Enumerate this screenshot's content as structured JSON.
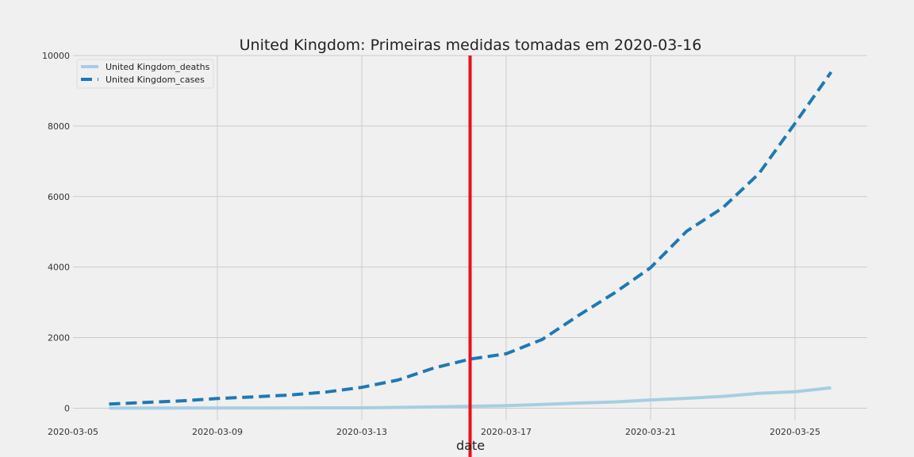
{
  "chart_data": {
    "type": "line",
    "title": "United Kingdom: Primeiras medidas tomadas em 2020-03-16",
    "xlabel": "date",
    "ylabel": "",
    "x_start": "2020-03-05",
    "x_end": "2020-03-27",
    "xticks": [
      "2020-03-05",
      "2020-03-09",
      "2020-03-13",
      "2020-03-17",
      "2020-03-21",
      "2020-03-25"
    ],
    "yticks": [
      0,
      2000,
      4000,
      6000,
      8000,
      10000
    ],
    "ylim": [
      -350,
      10000
    ],
    "grid": true,
    "legend_position": "upper-left",
    "marker_line": {
      "date": "2020-03-16",
      "color": "#e8101a"
    },
    "x": [
      "2020-03-06",
      "2020-03-07",
      "2020-03-08",
      "2020-03-09",
      "2020-03-10",
      "2020-03-11",
      "2020-03-12",
      "2020-03-13",
      "2020-03-14",
      "2020-03-15",
      "2020-03-16",
      "2020-03-17",
      "2020-03-18",
      "2020-03-19",
      "2020-03-20",
      "2020-03-21",
      "2020-03-22",
      "2020-03-23",
      "2020-03-24",
      "2020-03-25",
      "2020-03-26"
    ],
    "series": [
      {
        "name": "United Kingdom_deaths",
        "style": "solid",
        "color": "#a6cee3",
        "values": [
          1,
          2,
          3,
          4,
          6,
          8,
          10,
          11,
          21,
          35,
          55,
          71,
          104,
          144,
          177,
          233,
          281,
          335,
          422,
          465,
          578
        ]
      },
      {
        "name": "United Kingdom_cases",
        "style": "dashed",
        "color": "#1f78b4",
        "values": [
          115,
          163,
          206,
          273,
          321,
          373,
          456,
          590,
          798,
          1140,
          1391,
          1543,
          1950,
          2626,
          3269,
          3983,
          5018,
          5683,
          6650,
          8077,
          9529
        ]
      }
    ]
  }
}
